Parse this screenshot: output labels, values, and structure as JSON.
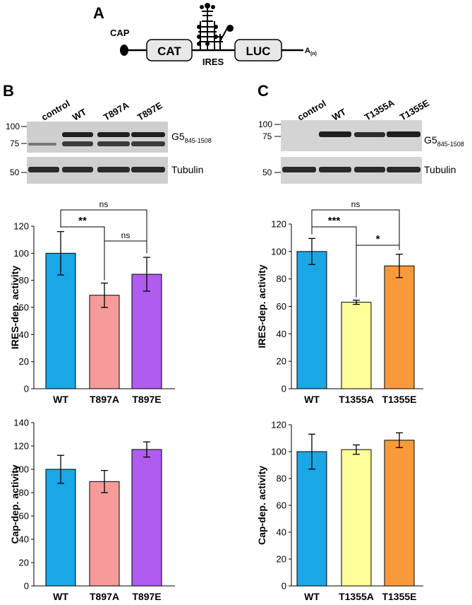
{
  "panels": {
    "a": "A",
    "b": "B",
    "c": "C"
  },
  "schematic": {
    "cap_label": "CAP",
    "cat_label": "CAT",
    "ires_label": "IRES",
    "luc_label": "LUC",
    "polya_label": "A",
    "polya_sub": "(n)"
  },
  "blots": {
    "b": {
      "lanes": [
        "control",
        "WT",
        "T897A",
        "T897E"
      ],
      "markers": [
        "100",
        "75",
        "50"
      ],
      "protein_main": "G5",
      "protein_sub": "845-1508",
      "loading": "Tubulin"
    },
    "c": {
      "lanes": [
        "control",
        "WT",
        "T1355A",
        "T1355E"
      ],
      "markers": [
        "100",
        "75",
        "50"
      ],
      "protein_main": "G5",
      "protein_sub": "845-1508",
      "loading": "Tubulin"
    }
  },
  "colors": {
    "wt": "#1aa7e6",
    "t897a": "#f79a9a",
    "t897e": "#b05cf0",
    "t1355a": "#ffff99",
    "t1355e": "#f99a3a"
  },
  "chart_data": [
    {
      "id": "b-ires",
      "type": "bar",
      "categories": [
        "WT",
        "T897A",
        "T897E"
      ],
      "values": [
        100,
        69,
        84.5
      ],
      "errors": [
        16,
        9,
        12.5
      ],
      "ylabel": "IRES-dep. activity",
      "ylim": [
        0,
        120
      ],
      "yticks": [
        "0",
        "20",
        "40",
        "60",
        "80",
        "100",
        "120"
      ],
      "colors": [
        "#1aa7e6",
        "#f79a9a",
        "#b05cf0"
      ],
      "significance": [
        {
          "from": "WT",
          "to": "T897E",
          "label": "ns"
        },
        {
          "from": "WT",
          "to": "T897A",
          "label": "**"
        },
        {
          "from": "T897A",
          "to": "T897E",
          "label": "ns"
        }
      ]
    },
    {
      "id": "c-ires",
      "type": "bar",
      "categories": [
        "WT",
        "T1355A",
        "T1355E"
      ],
      "values": [
        100,
        63,
        89.5
      ],
      "errors": [
        9.5,
        1.5,
        8.5
      ],
      "ylabel": "IRES-dep. activity",
      "ylim": [
        0,
        120
      ],
      "yticks": [
        "0",
        "20",
        "40",
        "60",
        "80",
        "100",
        "120"
      ],
      "colors": [
        "#1aa7e6",
        "#ffff99",
        "#f99a3a"
      ],
      "significance": [
        {
          "from": "WT",
          "to": "T1355E",
          "label": "ns"
        },
        {
          "from": "WT",
          "to": "T1355A",
          "label": "***"
        },
        {
          "from": "T1355A",
          "to": "T1355E",
          "label": "*"
        }
      ]
    },
    {
      "id": "b-cap",
      "type": "bar",
      "categories": [
        "WT",
        "T897A",
        "T897E"
      ],
      "values": [
        100,
        89.5,
        117
      ],
      "errors": [
        12,
        9.5,
        6.5
      ],
      "ylabel": "Cap-dep. activity",
      "ylim": [
        0,
        140
      ],
      "yticks": [
        "0",
        "20",
        "40",
        "60",
        "80",
        "100",
        "120",
        "140"
      ],
      "colors": [
        "#1aa7e6",
        "#f79a9a",
        "#b05cf0"
      ]
    },
    {
      "id": "c-cap",
      "type": "bar",
      "categories": [
        "WT",
        "T1355A",
        "T1355E"
      ],
      "values": [
        100,
        101.5,
        108.5
      ],
      "errors": [
        13,
        3.5,
        5.5
      ],
      "ylabel": "Cap-dep. activity",
      "ylim": [
        0,
        120
      ],
      "yticks": [
        "0",
        "20",
        "40",
        "60",
        "80",
        "100",
        "120"
      ],
      "colors": [
        "#1aa7e6",
        "#ffff99",
        "#f99a3a"
      ]
    }
  ]
}
